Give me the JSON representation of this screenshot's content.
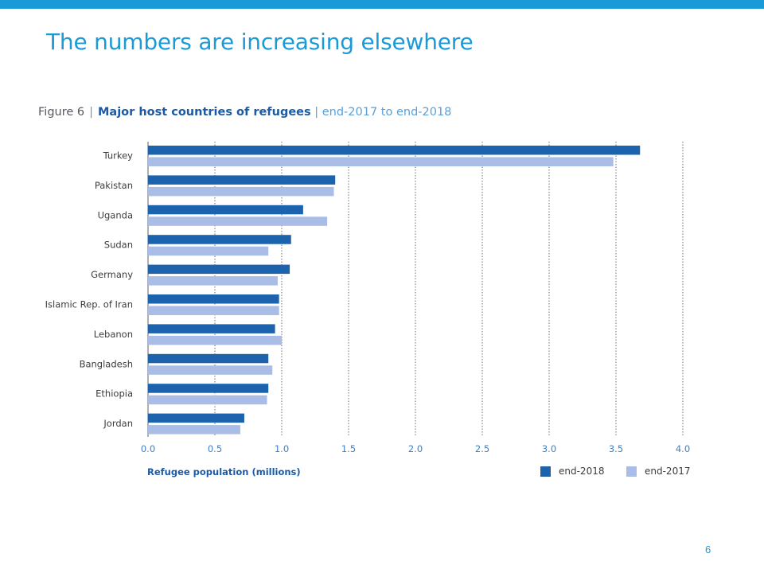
{
  "slide": {
    "title": "The numbers are increasing elsewhere",
    "page_number": "6",
    "accent_color": "#1a9ad6"
  },
  "figure": {
    "label": "Figure 6",
    "separator": "|",
    "title": "Major host countries of refugees",
    "subtitle": "| end-2017 to end-2018"
  },
  "chart_data": {
    "type": "bar",
    "orientation": "horizontal",
    "categories": [
      "Turkey",
      "Pakistan",
      "Uganda",
      "Sudan",
      "Germany",
      "Islamic Rep. of Iran",
      "Lebanon",
      "Bangladesh",
      "Ethiopia",
      "Jordan"
    ],
    "series": [
      {
        "name": "end-2018",
        "color": "#1c62ad",
        "values": [
          3.68,
          1.4,
          1.16,
          1.07,
          1.06,
          0.98,
          0.95,
          0.9,
          0.9,
          0.72
        ]
      },
      {
        "name": "end-2017",
        "color": "#a9bde6",
        "values": [
          3.48,
          1.39,
          1.34,
          0.9,
          0.97,
          0.98,
          1.0,
          0.93,
          0.89,
          0.69
        ]
      }
    ],
    "xlabel": "Refugee population (millions)",
    "xlim": [
      0,
      4.0
    ],
    "ticks": [
      "0.0",
      "0.5",
      "1.0",
      "1.5",
      "2.0",
      "2.5",
      "3.0",
      "3.5",
      "4.0"
    ],
    "grid": "vertical dotted",
    "legend_position": "bottom-right"
  }
}
